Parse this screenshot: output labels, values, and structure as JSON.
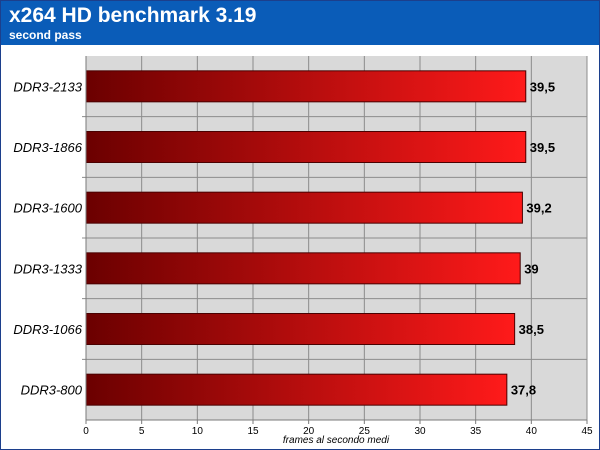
{
  "chart_data": {
    "type": "bar",
    "orientation": "horizontal",
    "title": "x264 HD benchmark 3.19",
    "subtitle": "second pass",
    "xlabel": "frames al secondo medi",
    "ylabel": "",
    "xlim": [
      0,
      45
    ],
    "ticks": [
      "0",
      "5",
      "10",
      "15",
      "20",
      "25",
      "30",
      "35",
      "40",
      "45"
    ],
    "tick_values": [
      0,
      5,
      10,
      15,
      20,
      25,
      30,
      35,
      40,
      45
    ],
    "categories": [
      "DDR3-2133",
      "DDR3-1866",
      "DDR3-1600",
      "DDR3-1333",
      "DDR3-1066",
      "DDR3-800"
    ],
    "values": [
      39.5,
      39.5,
      39.2,
      39,
      38.5,
      37.8
    ],
    "value_labels": [
      "39,5",
      "39,5",
      "39,2",
      "39",
      "38,5",
      "37,8"
    ],
    "grid": true,
    "legend": "none",
    "colors": {
      "header_bg": "#0a5cb8",
      "plot_bg": "#d9d9d9",
      "bar_dark": "#6b0000",
      "bar_light": "#ff1a1a"
    }
  }
}
